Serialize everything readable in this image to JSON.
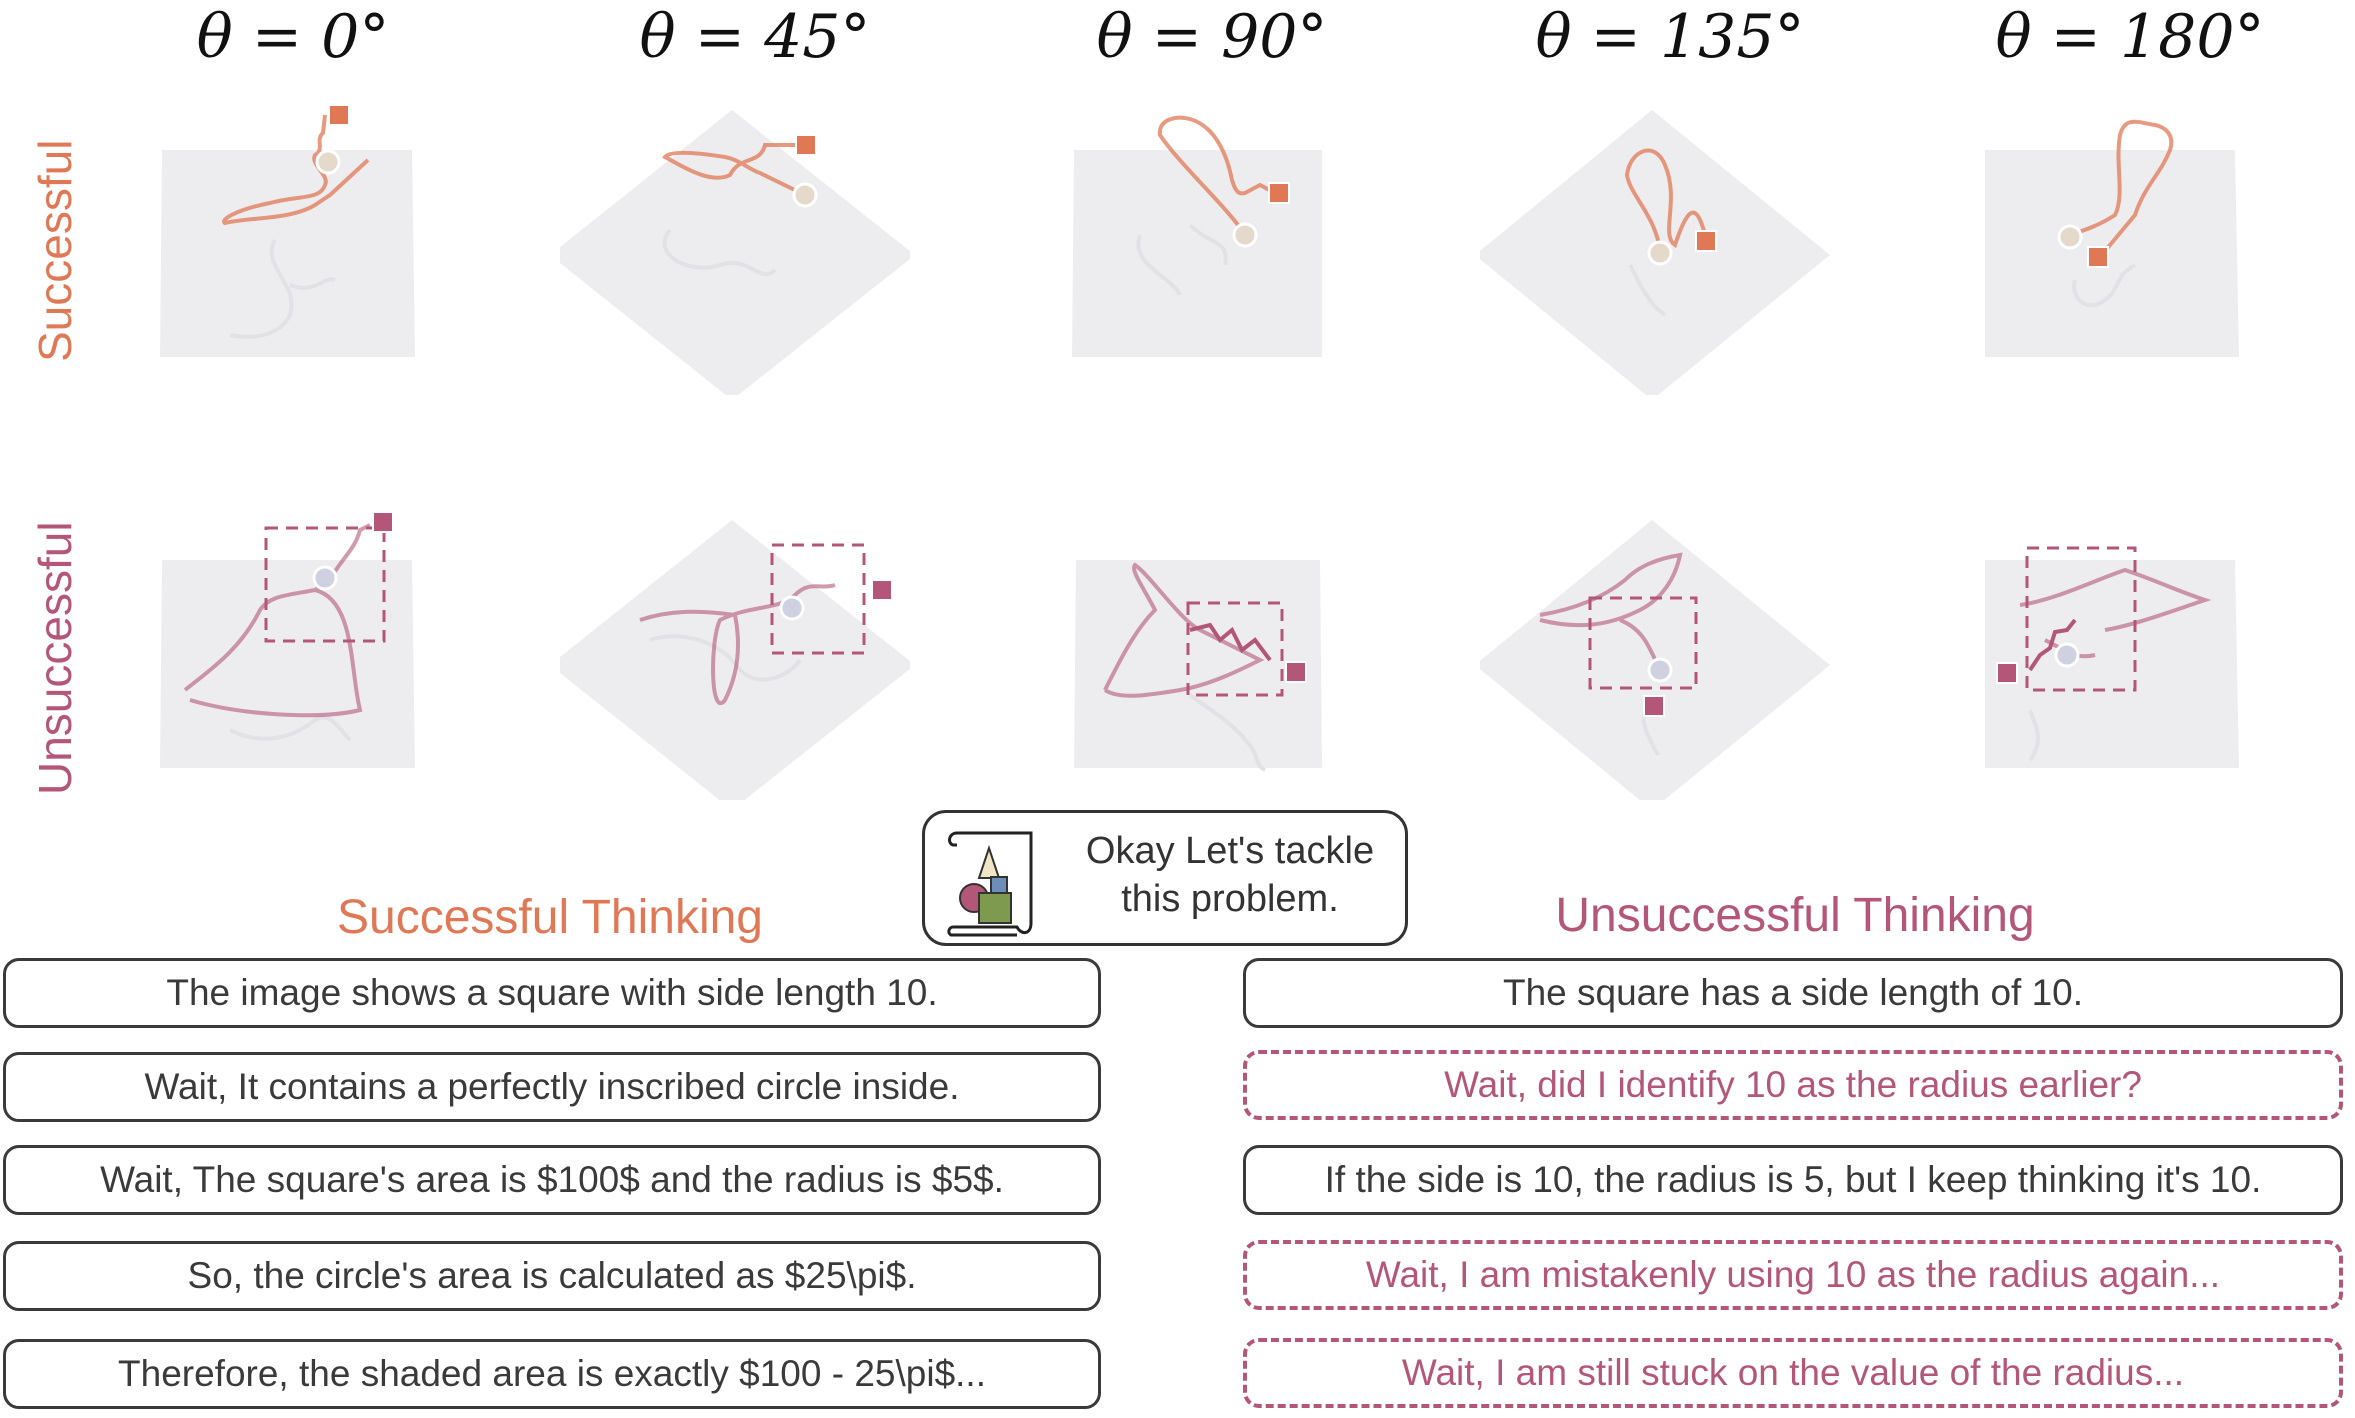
{
  "angles": [
    "θ = 0°",
    "θ = 45°",
    "θ = 90°",
    "θ = 135°",
    "θ = 180°"
  ],
  "row_labels": {
    "successful": "Successful",
    "unsuccessful": "Unsuccessful"
  },
  "colors": {
    "successful": "#e07856",
    "unsuccessful": "#b35677",
    "plane": "#ededf0",
    "start": "#e5d9cc",
    "start_unsucc": "#cfd0e0"
  },
  "bubble": {
    "line1": "Okay Let's tackle",
    "line2": "this problem.",
    "icon": "scroll-with-shapes-icon"
  },
  "successful_heading": "Successful Thinking",
  "unsuccessful_heading": "Unsuccessful Thinking",
  "successful_steps": [
    "The image shows a square with side length 10.",
    "Wait, It contains a perfectly inscribed circle inside.",
    "Wait, The square's area is $100$ and the radius is $5$.",
    "So, the circle's area is calculated as $25\\pi$.",
    "Therefore, the shaded area is exactly $100 - 25\\pi$..."
  ],
  "unsuccessful_steps": [
    "The square has a side length of 10.",
    "Wait, did I identify 10 as the radius earlier?",
    "If the side is 10, the radius is 5, but I keep thinking it's 10.",
    "Wait, I am mistakenly using 10 as the radius again...",
    "Wait, I am still stuck on the value of the radius..."
  ],
  "unsuccessful_dashed": [
    false,
    true,
    false,
    true,
    true
  ]
}
